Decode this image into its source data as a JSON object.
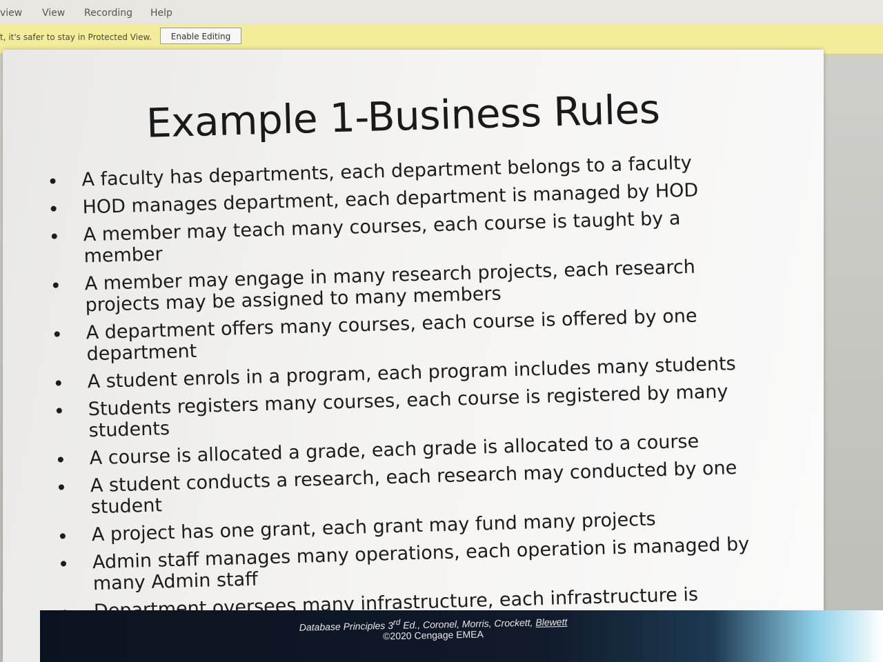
{
  "menu": {
    "items": [
      "view",
      "View",
      "Recording",
      "Help"
    ]
  },
  "protected_view": {
    "message": "t, it's safer to stay in Protected View.",
    "button_label": "Enable Editing"
  },
  "slide": {
    "title": "Example 1-Business Rules",
    "bullets": [
      "A faculty has departments, each department belongs to a faculty",
      "HOD manages department, each department is managed by HOD",
      "A member may teach many courses, each course is taught by a member",
      "A member may engage in many research projects, each research projects may be assigned to many members",
      "A department offers many courses, each course is offered by one department",
      "A student enrols in a program, each program includes many students",
      "Students registers many courses, each course is registered by many students",
      "A course is allocated a grade, each grade is allocated to a course",
      "A student conducts a research, each research may conducted by one student",
      "A project has one grant, each grant may fund many projects",
      "Admin staff manages many operations, each operation is managed by many Admin staff",
      "Department oversees many infrastructure, each infrastructure is managed by one department"
    ],
    "footer": {
      "book_title": "Database Principles 3",
      "edition_sup": "rd",
      "edition_rest": " Ed., Coronel, Morris, Crockett, ",
      "last_author": "Blewett",
      "copyright": "©2020 Cengage EMEA"
    }
  }
}
